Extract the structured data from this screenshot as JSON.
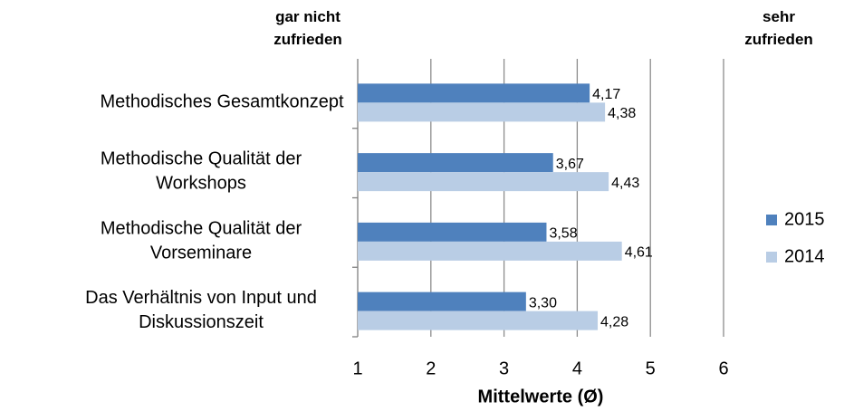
{
  "chart_data": {
    "type": "bar",
    "orientation": "horizontal",
    "annotations": [
      "gar nicht\nzufrieden",
      "sehr\nzufrieden"
    ],
    "xlabel": "Mittelwerte (Ø)",
    "categories": [
      "Methodisches Gesamtkonzept",
      "Methodische Qualität der\nWorkshops",
      "Methodische Qualität der\nVorseminare",
      "Das Verhältnis von Input und\nDiskussionszeit"
    ],
    "series": [
      {
        "name": "2015",
        "color": "#4f81bd",
        "values": [
          4.17,
          3.67,
          3.58,
          3.3
        ],
        "value_labels": [
          "4,17",
          "3,67",
          "3,58",
          "3,30"
        ]
      },
      {
        "name": "2014",
        "color": "#b9cde5",
        "values": [
          4.38,
          4.43,
          4.61,
          4.28
        ],
        "value_labels": [
          "4,38",
          "4,43",
          "4,61",
          "4,28"
        ]
      }
    ],
    "xlim": [
      1,
      6
    ],
    "xticks": [
      1,
      2,
      3,
      4,
      5,
      6
    ],
    "grid": true,
    "legend": "right"
  }
}
